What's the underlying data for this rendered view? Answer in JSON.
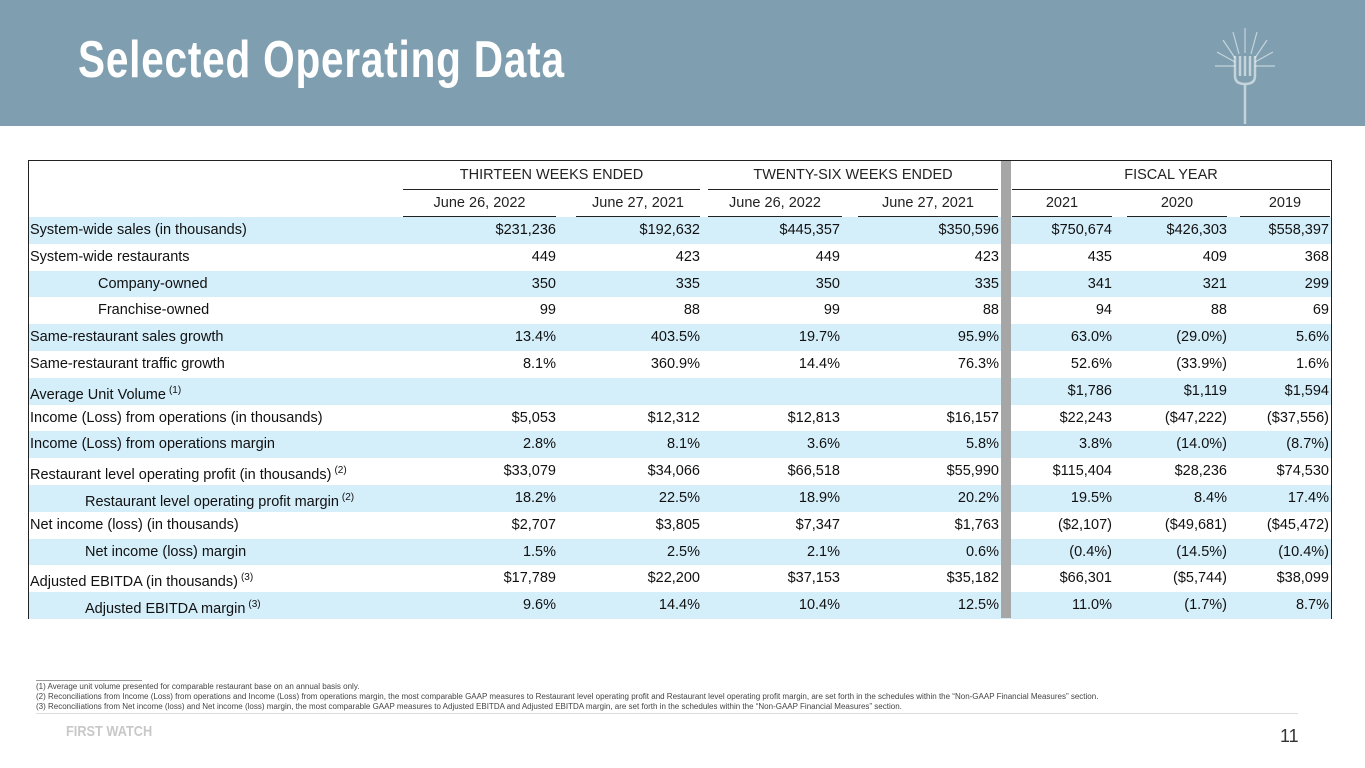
{
  "header": {
    "title": "Selected Operating Data"
  },
  "table": {
    "groups": [
      "THIRTEEN WEEKS ENDED",
      "TWENTY-SIX WEEKS ENDED",
      "FISCAL YEAR"
    ],
    "columns": [
      "June 26, 2022",
      "June 27, 2021",
      "June 26, 2022",
      "June 27, 2021",
      "2021",
      "2020",
      "2019"
    ],
    "rows": [
      {
        "label": "System-wide sales (in thousands)",
        "cells": [
          "$231,236",
          "$192,632",
          "$445,357",
          "$350,596",
          "$750,674",
          "$426,303",
          "$558,397"
        ]
      },
      {
        "label": "System-wide restaurants",
        "cells": [
          "449",
          "423",
          "449",
          "423",
          "435",
          "409",
          "368"
        ]
      },
      {
        "label": "Company-owned",
        "cells": [
          "350",
          "335",
          "350",
          "335",
          "341",
          "321",
          "299"
        ]
      },
      {
        "label": "Franchise-owned",
        "cells": [
          "99",
          "88",
          "99",
          "88",
          "94",
          "88",
          "69"
        ]
      },
      {
        "label": "Same-restaurant sales growth",
        "cells": [
          "13.4%",
          "403.5%",
          "19.7%",
          "95.9%",
          "63.0%",
          "(29.0%)",
          "5.6%"
        ]
      },
      {
        "label": "Same-restaurant traffic growth",
        "cells": [
          "8.1%",
          "360.9%",
          "14.4%",
          "76.3%",
          "52.6%",
          "(33.9%)",
          "1.6%"
        ]
      },
      {
        "label": "Average Unit Volume",
        "note": "(1)",
        "cells": [
          null,
          null,
          null,
          null,
          "$1,786",
          "$1,119",
          "$1,594"
        ]
      },
      {
        "label": "Income (Loss) from operations (in thousands)",
        "cells": [
          "$5,053",
          "$12,312",
          "$12,813",
          "$16,157",
          "$22,243",
          "($47,222)",
          "($37,556)"
        ]
      },
      {
        "label": "Income (Loss) from operations margin",
        "cells": [
          "2.8%",
          "8.1%",
          "3.6%",
          "5.8%",
          "3.8%",
          "(14.0%)",
          "(8.7%)"
        ]
      },
      {
        "label": "Restaurant level operating profit (in thousands)",
        "note": "(2)",
        "cells": [
          "$33,079",
          "$34,066",
          "$66,518",
          "$55,990",
          "$115,404",
          "$28,236",
          "$74,530"
        ]
      },
      {
        "label": "Restaurant level operating profit margin",
        "note": "(2)",
        "cells": [
          "18.2%",
          "22.5%",
          "18.9%",
          "20.2%",
          "19.5%",
          "8.4%",
          "17.4%"
        ]
      },
      {
        "label": "Net income (loss) (in thousands)",
        "cells": [
          "$2,707",
          "$3,805",
          "$7,347",
          "$1,763",
          "($2,107)",
          "($49,681)",
          "($45,472)"
        ]
      },
      {
        "label": "Net income (loss) margin",
        "cells": [
          "1.5%",
          "2.5%",
          "2.1%",
          "0.6%",
          "(0.4%)",
          "(14.5%)",
          "(10.4%)"
        ]
      },
      {
        "label": "Adjusted EBITDA (in thousands)",
        "note": "(3)",
        "cells": [
          "$17,789",
          "$22,200",
          "$37,153",
          "$35,182",
          "$66,301",
          "($5,744)",
          "$38,099"
        ]
      },
      {
        "label": "Adjusted EBITDA margin",
        "note": "(3)",
        "cells": [
          "9.6%",
          "14.4%",
          "10.4%",
          "12.5%",
          "11.0%",
          "(1.7%)",
          "8.7%"
        ]
      }
    ]
  },
  "footnotes": [
    "(1) Average unit volume presented for comparable restaurant base on an annual basis only.",
    "(2) Reconciliations from Income (Loss) from operations and Income (Loss) from operations margin, the most comparable GAAP measures to Restaurant level operating profit and Restaurant level operating profit margin, are set forth in the schedules within the “Non-GAAP Financial Measures” section.",
    "(3) Reconciliations from Net income (loss) and Net income (loss) margin, the most comparable GAAP measures to Adjusted EBITDA and Adjusted EBITDA margin, are set forth in the schedules within the “Non-GAAP Financial Measures” section."
  ],
  "footer": {
    "brand": "FIRST WATCH",
    "page": "11"
  }
}
